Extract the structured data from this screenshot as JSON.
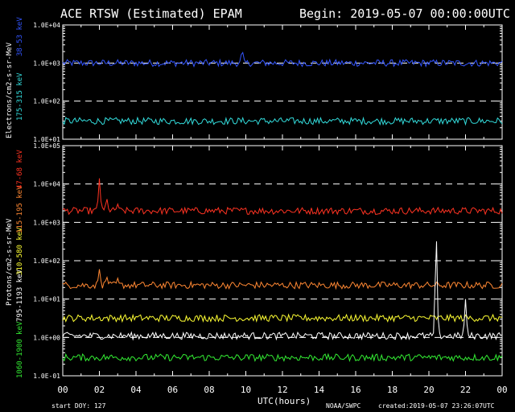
{
  "header": {
    "title": "ACE RTSW (Estimated) EPAM",
    "begin": "Begin: 2019-05-07 00:00:00UTC"
  },
  "footer": {
    "start_doy": "start DOY:  127",
    "xlabel": "UTC(hours)",
    "source": "NOAA/SWPC",
    "created": "created:2019-05-07 23:26:07UTC"
  },
  "colors": {
    "background": "#000000",
    "axes": "#ffffff",
    "grid": "#ffffff",
    "e38": "#3355ff",
    "e175": "#33dddd",
    "p47": "#ff3322",
    "p115": "#ff8833",
    "p310": "#ffff33",
    "p795": "#ffffff",
    "p1060": "#33ee33"
  },
  "chart_data": [
    {
      "type": "line",
      "panel": "electrons",
      "ylabel": "Electrons/cm2-s-sr-MeV",
      "ylabel_series": [
        "38-53 keV",
        "175-315 keV"
      ],
      "log_y": true,
      "ylim": [
        10,
        10000
      ],
      "yticks": [
        "1.0E+01",
        "1.0E+02",
        "1.0E+03",
        "1.0E+04"
      ],
      "xlim": [
        0,
        24
      ],
      "xticks": [
        "00",
        "02",
        "04",
        "06",
        "08",
        "10",
        "12",
        "14",
        "16",
        "18",
        "20",
        "22",
        "00"
      ],
      "grid": "dashed horizontal at decades",
      "series": [
        {
          "name": "38-53 keV",
          "color_key": "e38",
          "baseline": 1000,
          "spikes": [
            {
              "x": 9.8,
              "y": 2400
            }
          ]
        },
        {
          "name": "175-315 keV",
          "color_key": "e175",
          "baseline": 30,
          "spikes": []
        }
      ]
    },
    {
      "type": "line",
      "panel": "protons",
      "ylabel": "Protons/cm2-s-sr-MeV",
      "ylabel_series": [
        "1060-1900 keV",
        "795-1193 keV",
        "310-580 keV",
        "115-195 keV",
        "47-68 keV"
      ],
      "log_y": true,
      "ylim": [
        0.1,
        100000
      ],
      "yticks": [
        "1.0E-01",
        "1.0E+00",
        "1.0E+01",
        "1.0E+02",
        "1.0E+03",
        "1.0E+04",
        "1.0E+05"
      ],
      "xlim": [
        0,
        24
      ],
      "xticks": [
        "00",
        "02",
        "04",
        "06",
        "08",
        "10",
        "12",
        "14",
        "16",
        "18",
        "20",
        "22",
        "00"
      ],
      "grid": "dashed horizontal at decades",
      "series": [
        {
          "name": "47-68 keV",
          "color_key": "p47",
          "baseline": 2000,
          "spikes": [
            {
              "x": 2.0,
              "y": 14000
            },
            {
              "x": 2.4,
              "y": 4500
            },
            {
              "x": 3.0,
              "y": 3000
            }
          ]
        },
        {
          "name": "115-195 keV",
          "color_key": "p115",
          "baseline": 23,
          "spikes": [
            {
              "x": 2.0,
              "y": 60
            },
            {
              "x": 2.4,
              "y": 40
            },
            {
              "x": 3.0,
              "y": 35
            }
          ]
        },
        {
          "name": "310-580 keV",
          "color_key": "p310",
          "baseline": 3.2,
          "spikes": []
        },
        {
          "name": "795-1193 keV",
          "color_key": "p795",
          "baseline": 1.1,
          "spikes": [
            {
              "x": 20.4,
              "y": 800
            },
            {
              "x": 22.0,
              "y": 10
            }
          ]
        },
        {
          "name": "1060-1900 keV",
          "color_key": "p1060",
          "baseline": 0.3,
          "spikes": []
        }
      ]
    }
  ]
}
